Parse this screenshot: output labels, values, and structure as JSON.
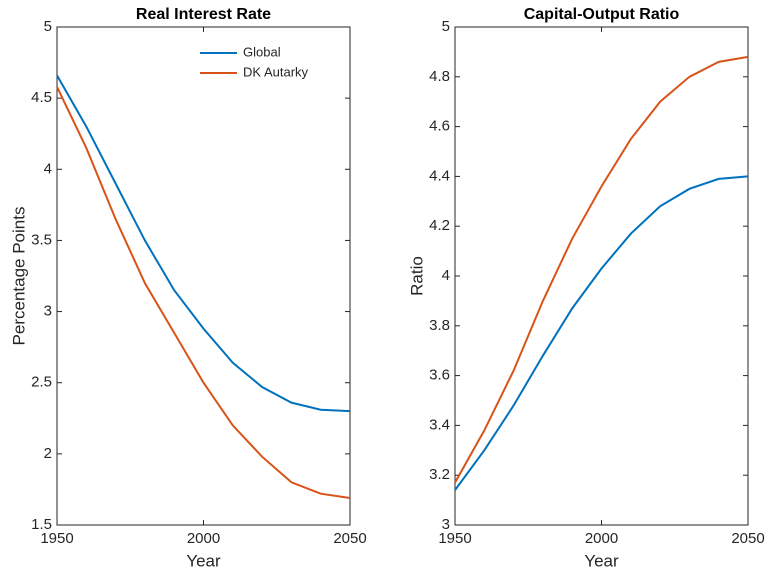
{
  "chart_data": [
    {
      "type": "line",
      "title": "Real Interest Rate",
      "x_label": "Year",
      "y_label": "Percentage Points",
      "x": [
        1950,
        1960,
        1970,
        1980,
        1990,
        2000,
        2010,
        2020,
        2030,
        2040,
        2050
      ],
      "series": [
        {
          "name": "Global",
          "color": "#0072BD",
          "values": [
            4.66,
            4.3,
            3.9,
            3.5,
            3.15,
            2.88,
            2.64,
            2.47,
            2.36,
            2.31,
            2.3
          ]
        },
        {
          "name": "DK Autarky",
          "color": "#D95319",
          "values": [
            4.58,
            4.15,
            3.65,
            3.2,
            2.85,
            2.5,
            2.2,
            1.98,
            1.8,
            1.72,
            1.69
          ]
        }
      ],
      "xlim": [
        1950,
        2050
      ],
      "xticks": [
        1950,
        2000,
        2050
      ],
      "ylim": [
        1.5,
        5
      ],
      "yticks": [
        1.5,
        2,
        2.5,
        3,
        3.5,
        4,
        4.5,
        5
      ],
      "legend": "top-right"
    },
    {
      "type": "line",
      "title": "Capital-Output Ratio",
      "x_label": "Year",
      "y_label": "Ratio",
      "x": [
        1950,
        1960,
        1970,
        1980,
        1990,
        2000,
        2010,
        2020,
        2030,
        2040,
        2050
      ],
      "series": [
        {
          "color": "#0072BD",
          "values": [
            3.14,
            3.3,
            3.48,
            3.68,
            3.87,
            4.03,
            4.17,
            4.28,
            4.35,
            4.39,
            4.4
          ]
        },
        {
          "color": "#D95319",
          "values": [
            3.17,
            3.38,
            3.62,
            3.9,
            4.15,
            4.36,
            4.55,
            4.7,
            4.8,
            4.86,
            4.88
          ]
        }
      ],
      "xlim": [
        1950,
        2050
      ],
      "xticks": [
        1950,
        2000,
        2050
      ],
      "ylim": [
        3,
        5
      ],
      "yticks": [
        3,
        3.2,
        3.4,
        3.6,
        3.8,
        4,
        4.2,
        4.4,
        4.6,
        4.8,
        5
      ]
    }
  ]
}
